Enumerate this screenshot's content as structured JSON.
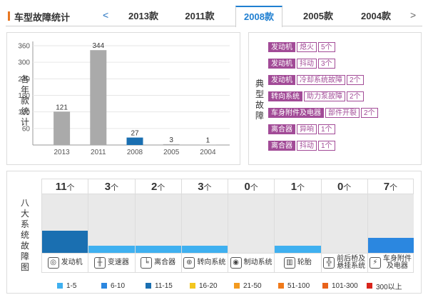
{
  "header": {
    "title": "车型故障统计",
    "prev": "<",
    "next": ">",
    "tabs": [
      "2013款",
      "2011款",
      "2008款",
      "2005款",
      "2004款"
    ],
    "active": "2008款"
  },
  "chart_data": {
    "type": "bar",
    "categories": [
      "2013",
      "2011",
      "2008",
      "2005",
      "2004"
    ],
    "values": [
      121,
      344,
      27,
      3,
      1
    ],
    "ylabel": "各年款统计",
    "yticks": [
      60,
      120,
      180,
      240,
      300,
      360
    ],
    "ylim": [
      0,
      360
    ],
    "highlight": "2008",
    "colors": {
      "bar": "#aaaaaa",
      "highlight": "#1a6fb1"
    }
  },
  "faults": {
    "label": "典型故障",
    "items": [
      {
        "category": "发动机",
        "detail": "熄火",
        "count": "5个"
      },
      {
        "category": "发动机",
        "detail": "抖动",
        "count": "3个"
      },
      {
        "category": "发动机",
        "detail": "冷却系统故障",
        "count": "2个"
      },
      {
        "category": "转向系统",
        "detail": "助力泵故障",
        "count": "2个"
      },
      {
        "category": "车身附件及电器",
        "detail": "部件开裂",
        "count": "2个"
      },
      {
        "category": "离合器",
        "detail": "异响",
        "count": "1个"
      },
      {
        "category": "离合器",
        "detail": "抖动",
        "count": "1个"
      }
    ]
  },
  "systems": {
    "label": "八大系统故障图",
    "unit": "个",
    "items": [
      {
        "name": "发动机",
        "count": "11",
        "level": 0.38,
        "color": "#1a6fb1",
        "icon": "engine-icon",
        "glyph": "◎"
      },
      {
        "name": "变速器",
        "count": "3",
        "level": 0.12,
        "color": "#3fb0f0",
        "icon": "gearbox-icon",
        "glyph": "╫"
      },
      {
        "name": "离合器",
        "count": "2",
        "level": 0.12,
        "color": "#3fb0f0",
        "icon": "clutch-pedal-icon",
        "glyph": "╘"
      },
      {
        "name": "转向系统",
        "count": "3",
        "level": 0.12,
        "color": "#3fb0f0",
        "icon": "steering-wheel-icon",
        "glyph": "⊕"
      },
      {
        "name": "制动系统",
        "count": "0",
        "level": 0,
        "color": "#3fb0f0",
        "icon": "brake-disc-icon",
        "glyph": "◉"
      },
      {
        "name": "轮胎",
        "count": "1",
        "level": 0.12,
        "color": "#3fb0f0",
        "icon": "tire-icon",
        "glyph": "▥"
      },
      {
        "name": "前后桥及悬挂系统",
        "count": "0",
        "level": 0,
        "color": "#3fb0f0",
        "icon": "axle-icon",
        "glyph": "╬"
      },
      {
        "name": "车身附件及电器",
        "count": "7",
        "level": 0.26,
        "color": "#2b87e0",
        "icon": "car-body-icon",
        "glyph": "⚡"
      }
    ]
  },
  "legend": [
    {
      "label": "1-5",
      "color": "#3fb0f0"
    },
    {
      "label": "6-10",
      "color": "#2b87e0"
    },
    {
      "label": "11-15",
      "color": "#1a6fb1"
    },
    {
      "label": "16-20",
      "color": "#f3c61f"
    },
    {
      "label": "21-50",
      "color": "#f39a1f"
    },
    {
      "label": "51-100",
      "color": "#f07a1a"
    },
    {
      "label": "101-300",
      "color": "#e8621a"
    },
    {
      "label": "300以上",
      "color": "#d9251c"
    }
  ]
}
